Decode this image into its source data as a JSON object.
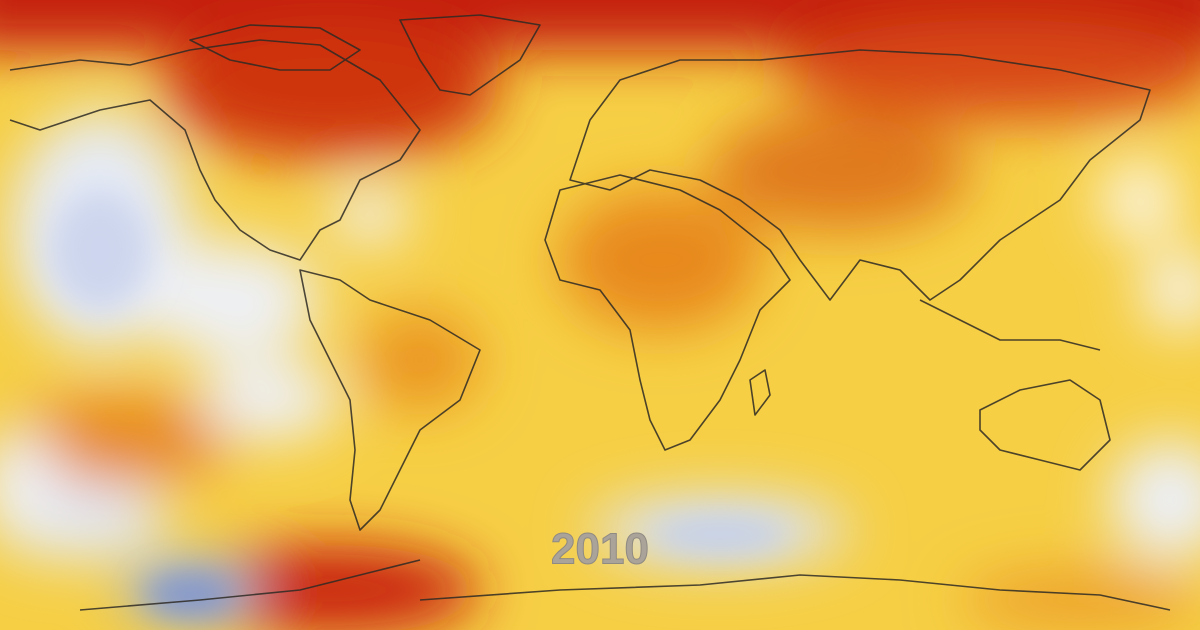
{
  "label": {
    "year": "2010"
  }
}
